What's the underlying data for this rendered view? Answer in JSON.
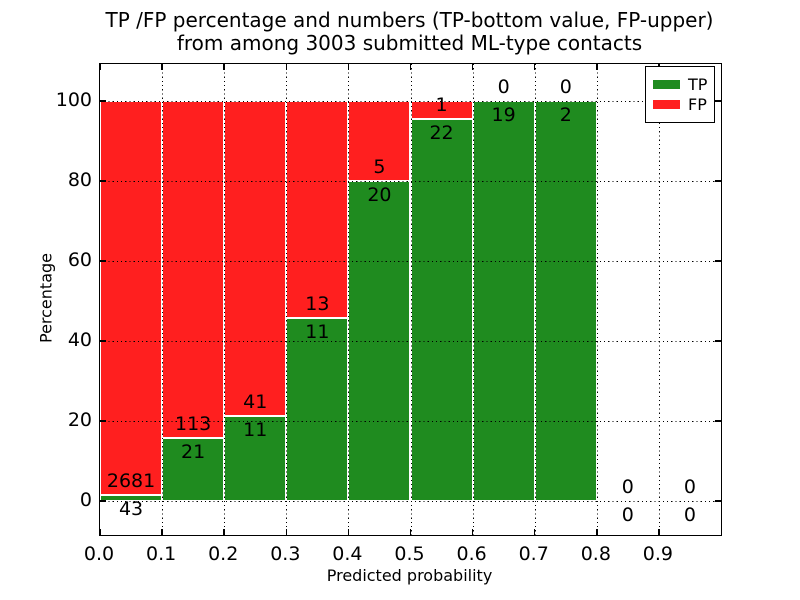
{
  "chart_data": {
    "type": "bar",
    "stacked": true,
    "normalized": "each bar shows TP/FP percentage share within its bin; labels show raw counts",
    "title_line1": "TP /FP percentage and numbers (TP-bottom value, FP-upper)",
    "title_line2": "from among 3003 submitted ML-type contacts",
    "xlabel": "Predicted probability",
    "ylabel": "Percentage",
    "x_tick_labels": [
      "0.0",
      "0.1",
      "0.2",
      "0.3",
      "0.4",
      "0.5",
      "0.6",
      "0.7",
      "0.8",
      "0.9"
    ],
    "y_ticks": [
      0,
      20,
      40,
      60,
      80,
      100
    ],
    "xlim": [
      0.0,
      1.0
    ],
    "ylim": [
      -8.5,
      109.3
    ],
    "bin_width": 0.1,
    "categories": [
      "0.0-0.1",
      "0.1-0.2",
      "0.2-0.3",
      "0.3-0.4",
      "0.4-0.5",
      "0.5-0.6",
      "0.6-0.7",
      "0.7-0.8",
      "0.8-0.9",
      "0.9-1.0"
    ],
    "series": [
      {
        "name": "TP",
        "color": "#1f8b1f",
        "values": [
          43,
          21,
          11,
          11,
          20,
          22,
          19,
          2,
          0,
          0
        ]
      },
      {
        "name": "FP",
        "color": "#ff1f1f",
        "values": [
          2681,
          113,
          41,
          13,
          5,
          1,
          0,
          0,
          0,
          0
        ]
      }
    ],
    "total_contacts": 3003,
    "grid": "dotted, on",
    "legend": {
      "position": "upper right",
      "entries": [
        {
          "label": "TP",
          "color": "#1f8b1f"
        },
        {
          "label": "FP",
          "color": "#ff1f1f"
        }
      ]
    }
  }
}
